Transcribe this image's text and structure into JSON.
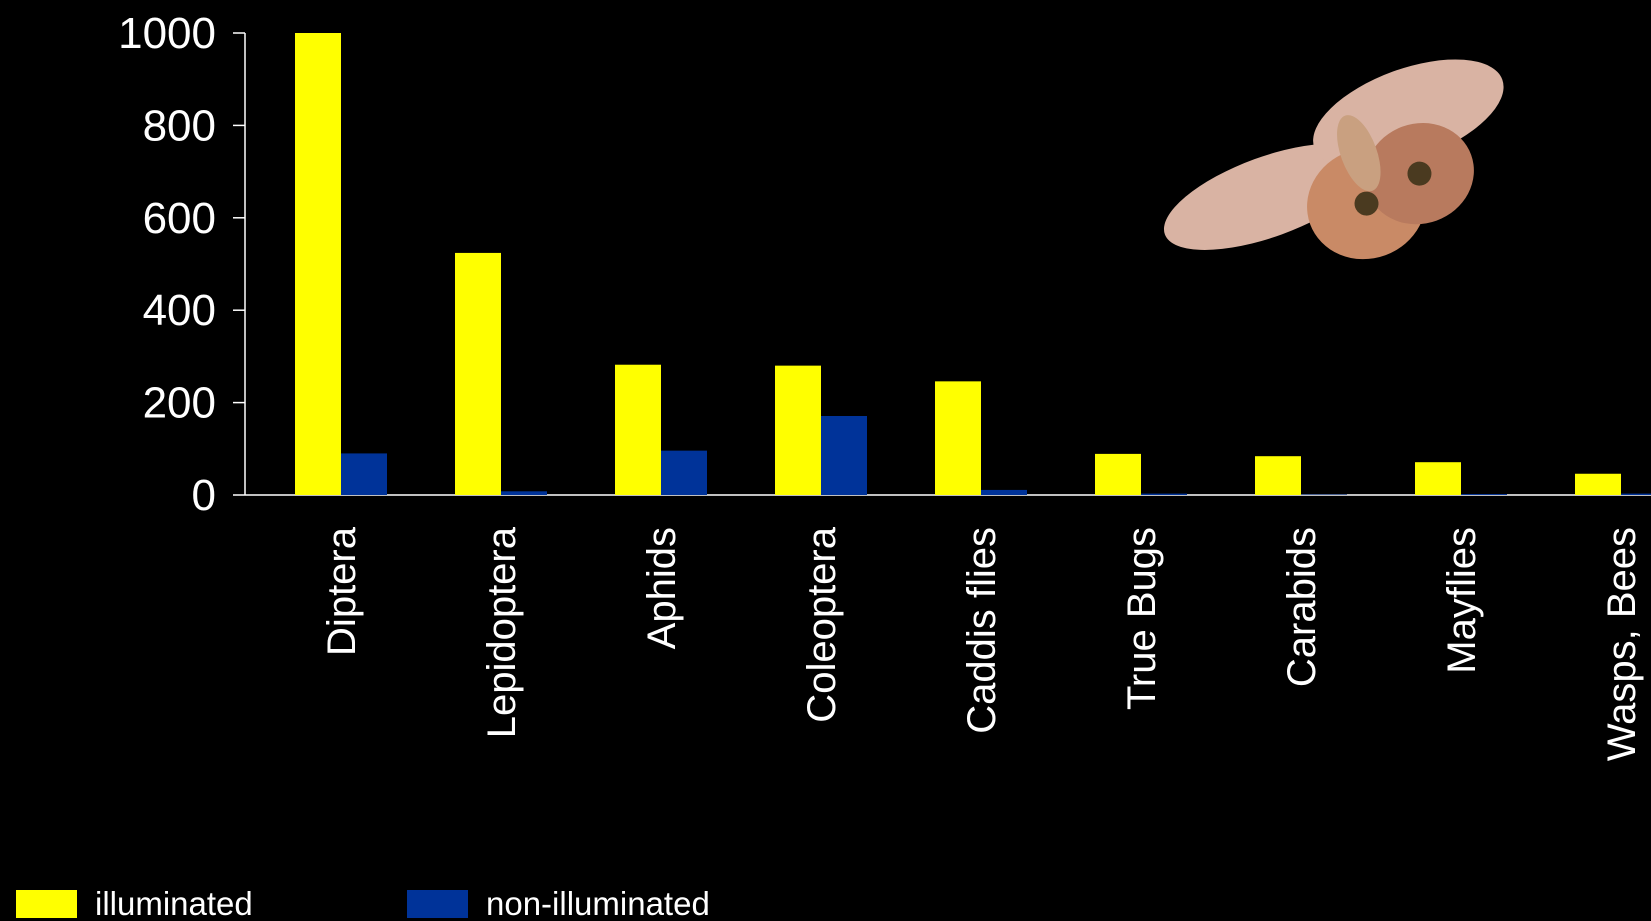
{
  "chart_data": {
    "type": "bar",
    "categories": [
      "Diptera",
      "Lepidoptera",
      "Aphids",
      "Coleoptera",
      "Caddis flies",
      "True Bugs",
      "Carabids",
      "Mayflies",
      "Wasps, Bees"
    ],
    "series": [
      {
        "name": "illuminated",
        "color": "#ffff00",
        "values": [
          1000,
          524,
          282,
          280,
          246,
          89,
          84,
          71,
          46
        ]
      },
      {
        "name": "non-illuminated",
        "color": "#003399",
        "values": [
          90,
          8,
          96,
          171,
          11,
          3,
          1,
          2,
          3
        ]
      }
    ],
    "ylim": [
      0,
      1000
    ],
    "yticks": [
      0,
      200,
      400,
      600,
      800,
      1000
    ],
    "grid": false
  }
}
